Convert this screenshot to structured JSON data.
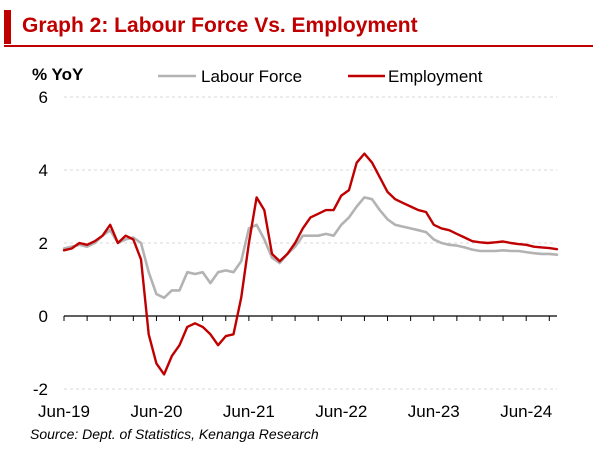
{
  "title": "Graph 2: Labour Force Vs. Employment",
  "source": "Source:  Dept. of Statistics, Kenanga Research",
  "colors": {
    "accent": "#c00000",
    "labour_force": "#b3b3b3",
    "employment": "#c00000"
  },
  "chart_data": {
    "type": "line",
    "ylabel": "% YoY",
    "ylim": [
      -2,
      6
    ],
    "yticks": [
      "6",
      "4",
      "2",
      "0",
      "-2"
    ],
    "xticks": [
      "Jun-19",
      "Jun-20",
      "Jun-21",
      "Jun-22",
      "Jun-23",
      "Jun-24"
    ],
    "grid": true,
    "legend_position": "top",
    "series": [
      {
        "name": "Labour Force",
        "color": "#b3b3b3",
        "points": [
          [
            0,
            1.85
          ],
          [
            1,
            1.9
          ],
          [
            2,
            1.95
          ],
          [
            3,
            1.9
          ],
          [
            4,
            2.0
          ],
          [
            5,
            2.2
          ],
          [
            6,
            2.35
          ],
          [
            7,
            2.0
          ],
          [
            8,
            2.1
          ],
          [
            9,
            2.15
          ],
          [
            10,
            2.0
          ],
          [
            11,
            1.2
          ],
          [
            12,
            0.6
          ],
          [
            13,
            0.5
          ],
          [
            14,
            0.7
          ],
          [
            15,
            0.7
          ],
          [
            16,
            1.2
          ],
          [
            17,
            1.15
          ],
          [
            18,
            1.2
          ],
          [
            19,
            0.9
          ],
          [
            20,
            1.2
          ],
          [
            21,
            1.25
          ],
          [
            22,
            1.2
          ],
          [
            23,
            1.5
          ],
          [
            24,
            2.4
          ],
          [
            25,
            2.5
          ],
          [
            26,
            2.1
          ],
          [
            27,
            1.6
          ],
          [
            28,
            1.45
          ],
          [
            29,
            1.7
          ],
          [
            30,
            1.9
          ],
          [
            31,
            2.2
          ],
          [
            32,
            2.2
          ],
          [
            33,
            2.2
          ],
          [
            34,
            2.25
          ],
          [
            35,
            2.2
          ],
          [
            36,
            2.5
          ],
          [
            37,
            2.7
          ],
          [
            38,
            3.0
          ],
          [
            39,
            3.25
          ],
          [
            40,
            3.2
          ],
          [
            41,
            2.9
          ],
          [
            42,
            2.65
          ],
          [
            43,
            2.5
          ],
          [
            44,
            2.45
          ],
          [
            45,
            2.4
          ],
          [
            46,
            2.35
          ],
          [
            47,
            2.3
          ],
          [
            48,
            2.1
          ],
          [
            49,
            2.0
          ],
          [
            50,
            1.95
          ],
          [
            51,
            1.93
          ],
          [
            52,
            1.88
          ],
          [
            53,
            1.82
          ],
          [
            54,
            1.78
          ],
          [
            55,
            1.78
          ],
          [
            56,
            1.78
          ],
          [
            57,
            1.8
          ],
          [
            58,
            1.78
          ],
          [
            59,
            1.78
          ],
          [
            60,
            1.75
          ],
          [
            61,
            1.72
          ],
          [
            62,
            1.7
          ],
          [
            63,
            1.7
          ],
          [
            64,
            1.68
          ]
        ]
      },
      {
        "name": "Employment",
        "color": "#c00000",
        "points": [
          [
            0,
            1.8
          ],
          [
            1,
            1.85
          ],
          [
            2,
            2.0
          ],
          [
            3,
            1.95
          ],
          [
            4,
            2.05
          ],
          [
            5,
            2.2
          ],
          [
            6,
            2.5
          ],
          [
            7,
            2.0
          ],
          [
            8,
            2.2
          ],
          [
            9,
            2.1
          ],
          [
            10,
            1.55
          ],
          [
            11,
            -0.5
          ],
          [
            12,
            -1.3
          ],
          [
            13,
            -1.6
          ],
          [
            14,
            -1.1
          ],
          [
            15,
            -0.8
          ],
          [
            16,
            -0.3
          ],
          [
            17,
            -0.2
          ],
          [
            18,
            -0.3
          ],
          [
            19,
            -0.5
          ],
          [
            20,
            -0.8
          ],
          [
            21,
            -0.55
          ],
          [
            22,
            -0.5
          ],
          [
            23,
            0.5
          ],
          [
            24,
            2.0
          ],
          [
            25,
            3.25
          ],
          [
            26,
            2.9
          ],
          [
            27,
            1.7
          ],
          [
            28,
            1.5
          ],
          [
            29,
            1.7
          ],
          [
            30,
            2.0
          ],
          [
            31,
            2.4
          ],
          [
            32,
            2.7
          ],
          [
            33,
            2.8
          ],
          [
            34,
            2.9
          ],
          [
            35,
            2.9
          ],
          [
            36,
            3.3
          ],
          [
            37,
            3.45
          ],
          [
            38,
            4.2
          ],
          [
            39,
            4.45
          ],
          [
            40,
            4.2
          ],
          [
            41,
            3.8
          ],
          [
            42,
            3.4
          ],
          [
            43,
            3.2
          ],
          [
            44,
            3.1
          ],
          [
            45,
            3.0
          ],
          [
            46,
            2.9
          ],
          [
            47,
            2.85
          ],
          [
            48,
            2.5
          ],
          [
            49,
            2.4
          ],
          [
            50,
            2.35
          ],
          [
            51,
            2.25
          ],
          [
            52,
            2.15
          ],
          [
            53,
            2.05
          ],
          [
            54,
            2.02
          ],
          [
            55,
            2.0
          ],
          [
            56,
            2.02
          ],
          [
            57,
            2.04
          ],
          [
            58,
            2.0
          ],
          [
            59,
            1.97
          ],
          [
            60,
            1.95
          ],
          [
            61,
            1.9
          ],
          [
            62,
            1.88
          ],
          [
            63,
            1.86
          ],
          [
            64,
            1.83
          ]
        ]
      }
    ]
  }
}
